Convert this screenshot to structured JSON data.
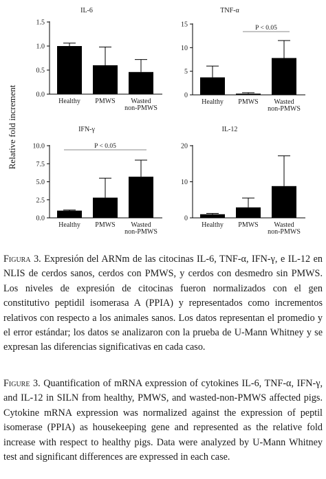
{
  "figure": {
    "ylabel": "Relative fold increment",
    "categories": [
      "Healthy",
      "PMWS",
      "Wasted",
      "non-PMWS"
    ],
    "bar_color": "#000000"
  },
  "chart_data": [
    {
      "type": "bar",
      "title": "IL-6",
      "categories": [
        "Healthy",
        "PMWS",
        "Wasted non-PMWS"
      ],
      "values": [
        1.0,
        0.6,
        0.46
      ],
      "errors": [
        0.06,
        0.38,
        0.26
      ],
      "ylim": [
        0,
        1.5
      ],
      "yticks": [
        "0.0",
        "0.5",
        "1.0",
        "1.5"
      ],
      "ytick_values": [
        0,
        0.5,
        1.0,
        1.5
      ],
      "significance": null
    },
    {
      "type": "bar",
      "title": "TNF-α",
      "categories": [
        "Healthy",
        "PMWS",
        "Wasted non-PMWS"
      ],
      "values": [
        3.7,
        0.25,
        7.8
      ],
      "errors": [
        2.4,
        0.2,
        3.7
      ],
      "ylim": [
        0,
        15
      ],
      "yticks": [
        "0",
        "5",
        "10",
        "15"
      ],
      "ytick_values": [
        0,
        5,
        10,
        15
      ],
      "significance": {
        "label": "P < 0.05",
        "from": 1,
        "to": 2
      }
    },
    {
      "type": "bar",
      "title": "IFN-γ",
      "categories": [
        "Healthy",
        "PMWS",
        "Wasted non-PMWS"
      ],
      "values": [
        1.0,
        2.8,
        5.7
      ],
      "errors": [
        0.08,
        2.7,
        2.3
      ],
      "ylim": [
        0,
        10
      ],
      "yticks": [
        "0.0",
        "2.5",
        "5.0",
        "7.5",
        "10.0"
      ],
      "ytick_values": [
        0,
        2.5,
        5,
        7.5,
        10
      ],
      "significance": {
        "label": "P < 0.05",
        "from": 0,
        "to": 2
      }
    },
    {
      "type": "bar",
      "title": "IL-12",
      "categories": [
        "Healthy",
        "PMWS",
        "Wasted non-PMWS"
      ],
      "values": [
        1.0,
        2.9,
        8.8
      ],
      "errors": [
        0.25,
        2.6,
        8.4
      ],
      "ylim": [
        0,
        20
      ],
      "yticks": [
        "0",
        "10",
        "20"
      ],
      "ytick_values": [
        0,
        10,
        20
      ],
      "significance": null
    }
  ],
  "caption_es": {
    "label": "Figura 3.",
    "text": "Expresión del ARNm de las citocinas IL-6, TNF-α, IFN-γ, e IL-12 en NLIS de cerdos sanos, cerdos con PMWS, y cerdos con desmedro sin PMWS. Los niveles de expresión de citocinas fueron normalizados con el gen constitutivo peptidil isomerasa A (PPIA) y representados como incrementos relativos con respecto a los animales sanos. Los datos representan el promedio y el error estándar; los datos se analizaron con la prueba de U-Mann Whitney y se expresan las diferencias significativas en cada caso."
  },
  "caption_en": {
    "label": "Figure 3.",
    "text": "Quantification of mRNA expression of cytokines IL-6, TNF-α, IFN-γ, and IL-12 in SILN from healthy, PMWS, and wasted-non-PMWS affected pigs. Cytokine mRNA expression was normalized against the expression of  peptil isomerase (PPIA) as housekeeping gene and represented as the relative fold increase with respect to healthy pigs. Data were analyzed by U-Mann Whitney test and significant differences are expressed in each case."
  }
}
